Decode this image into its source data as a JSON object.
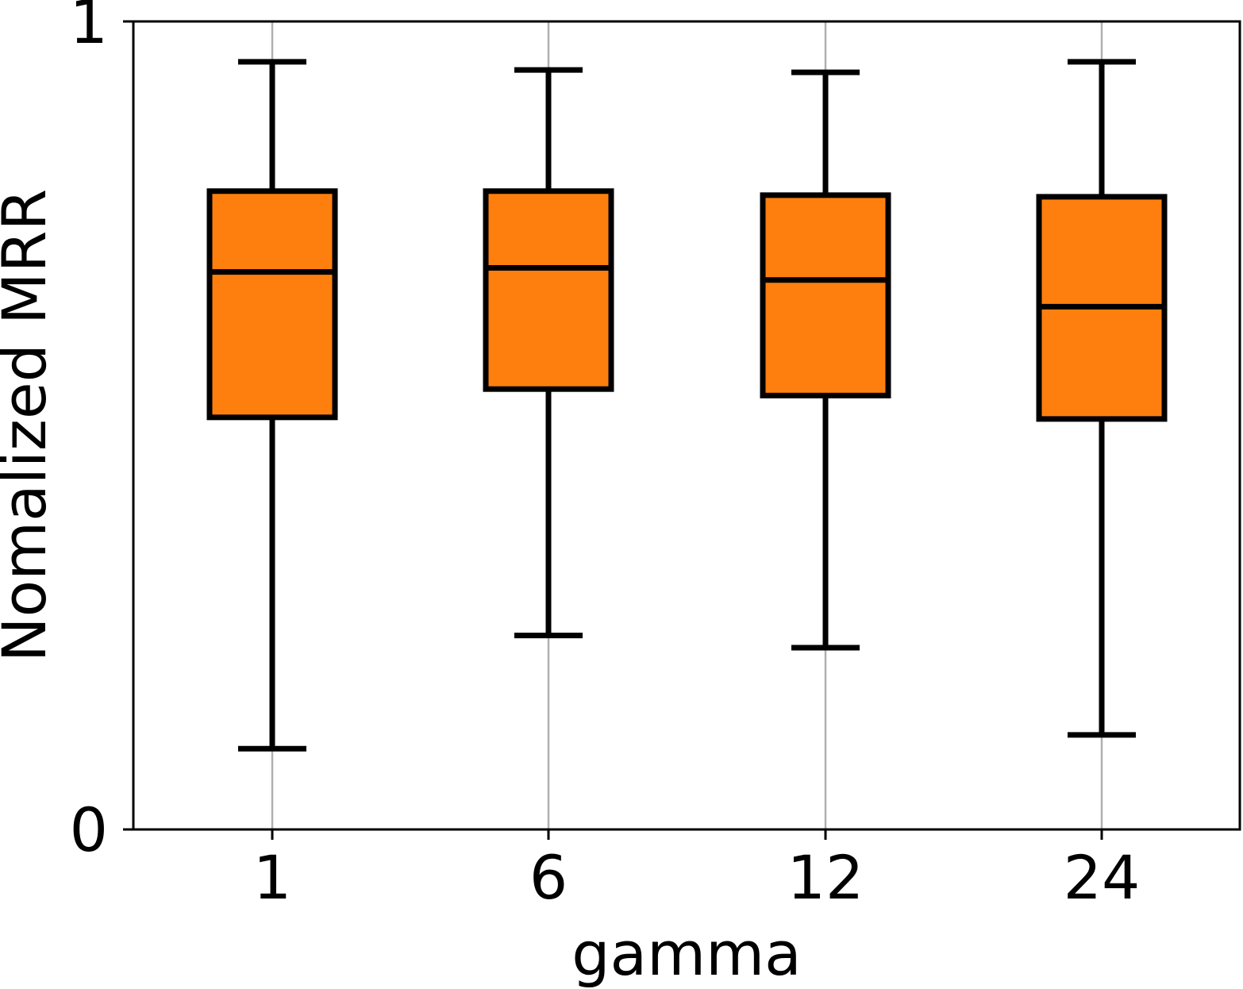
{
  "chart_data": {
    "type": "boxplot",
    "title": "",
    "xlabel": "gamma",
    "ylabel": "Nomalized MRR",
    "categories": [
      "1",
      "6",
      "12",
      "24"
    ],
    "ylim": [
      0,
      1
    ],
    "yticks": [
      "0",
      "1"
    ],
    "grid": "vertical",
    "box_color": "#ff7f0e",
    "edge_color": "#000000",
    "grid_color": "#b0b0b0",
    "boxes": [
      {
        "category": "1",
        "whisker_low": 0.1,
        "q1": 0.51,
        "median": 0.69,
        "q3": 0.79,
        "whisker_high": 0.95
      },
      {
        "category": "6",
        "whisker_low": 0.24,
        "q1": 0.545,
        "median": 0.695,
        "q3": 0.79,
        "whisker_high": 0.94
      },
      {
        "category": "12",
        "whisker_low": 0.225,
        "q1": 0.537,
        "median": 0.68,
        "q3": 0.785,
        "whisker_high": 0.937
      },
      {
        "category": "24",
        "whisker_low": 0.117,
        "q1": 0.508,
        "median": 0.647,
        "q3": 0.783,
        "whisker_high": 0.95
      }
    ]
  }
}
